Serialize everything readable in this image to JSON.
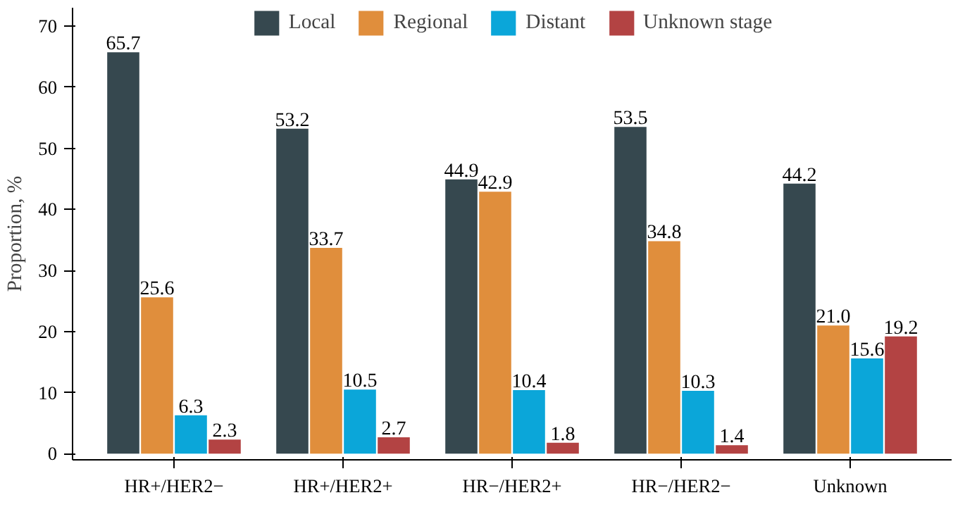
{
  "chart_data": {
    "type": "bar",
    "ylabel": "Proportion, %",
    "categories": [
      "HR+/HER2−",
      "HR+/HER2+",
      "HR−/HER2+",
      "HR−/HER2−",
      "Unknown"
    ],
    "series": [
      {
        "name": "Local",
        "color": "#36484f",
        "values": [
          65.7,
          53.2,
          44.9,
          53.5,
          44.2
        ],
        "value_labels": [
          "65.7",
          "53.2",
          "44.9",
          "53.5",
          "44.2"
        ]
      },
      {
        "name": "Regional",
        "color": "#e08e3c",
        "values": [
          25.6,
          33.7,
          42.9,
          34.8,
          21.0
        ],
        "value_labels": [
          "25.6",
          "33.7",
          "42.9",
          "34.8",
          "21.0"
        ]
      },
      {
        "name": "Distant",
        "color": "#0ba6d9",
        "values": [
          6.3,
          10.5,
          10.4,
          10.3,
          15.6
        ],
        "value_labels": [
          "6.3",
          "10.5",
          "10.4",
          "10.3",
          "15.6"
        ]
      },
      {
        "name": "Unknown stage",
        "color": "#b34343",
        "values": [
          2.3,
          2.7,
          1.8,
          1.4,
          19.2
        ],
        "value_labels": [
          "2.3",
          "2.7",
          "1.8",
          "1.4",
          "19.2"
        ]
      }
    ],
    "ylim": [
      -1,
      73
    ],
    "yticks": [
      0,
      10,
      20,
      30,
      40,
      50,
      60,
      70
    ],
    "legend": "top"
  }
}
